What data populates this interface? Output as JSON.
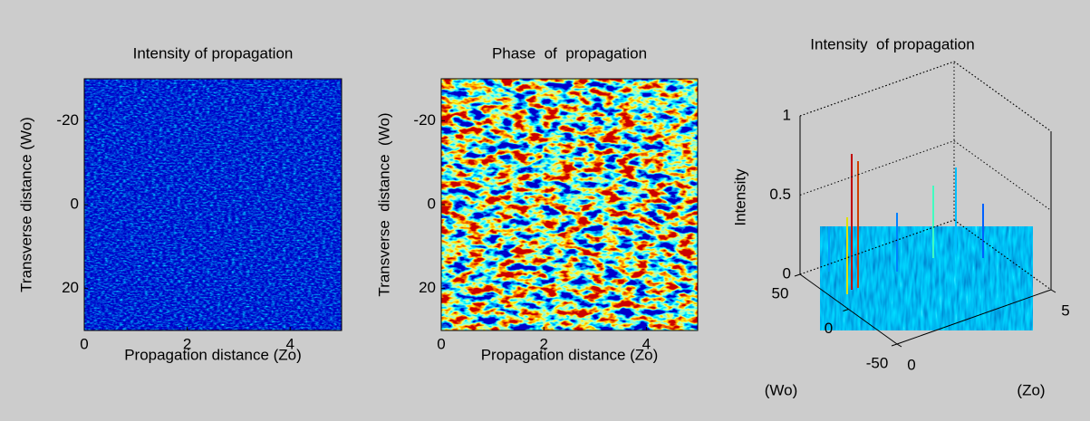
{
  "chart_data": [
    {
      "type": "heatmap",
      "title": "Intensity of propagation",
      "xlabel": "Propagation distance (Zo)",
      "ylabel": "Transverse distance (Wo)",
      "xlim": [
        0,
        5
      ],
      "ylim": [
        -30,
        30
      ],
      "yreverse": true,
      "xticks": [
        0,
        2,
        4
      ],
      "yticks": [
        -20,
        0,
        20
      ]
    },
    {
      "type": "heatmap",
      "title": "Phase  of  propagation",
      "xlabel": "Propagation distance (Zo)",
      "ylabel": "Transverse  distance  (Wo)",
      "xlim": [
        0,
        5
      ],
      "ylim": [
        -30,
        30
      ],
      "yreverse": true,
      "xticks": [
        0,
        2,
        4
      ],
      "yticks": [
        -20,
        0,
        20
      ]
    },
    {
      "type": "surface",
      "title": "Intensity  of propagation",
      "xlabel": "(Zo)",
      "ylabel": "(Wo)",
      "zlabel": "Intensity",
      "xlim": [
        0,
        5
      ],
      "ylim": [
        -50,
        50
      ],
      "zlim": [
        0,
        1
      ],
      "xticks": [
        0,
        5
      ],
      "yticks": [
        -50,
        0,
        50
      ],
      "zticks": [
        0,
        0.5,
        1
      ],
      "grid": true
    }
  ]
}
